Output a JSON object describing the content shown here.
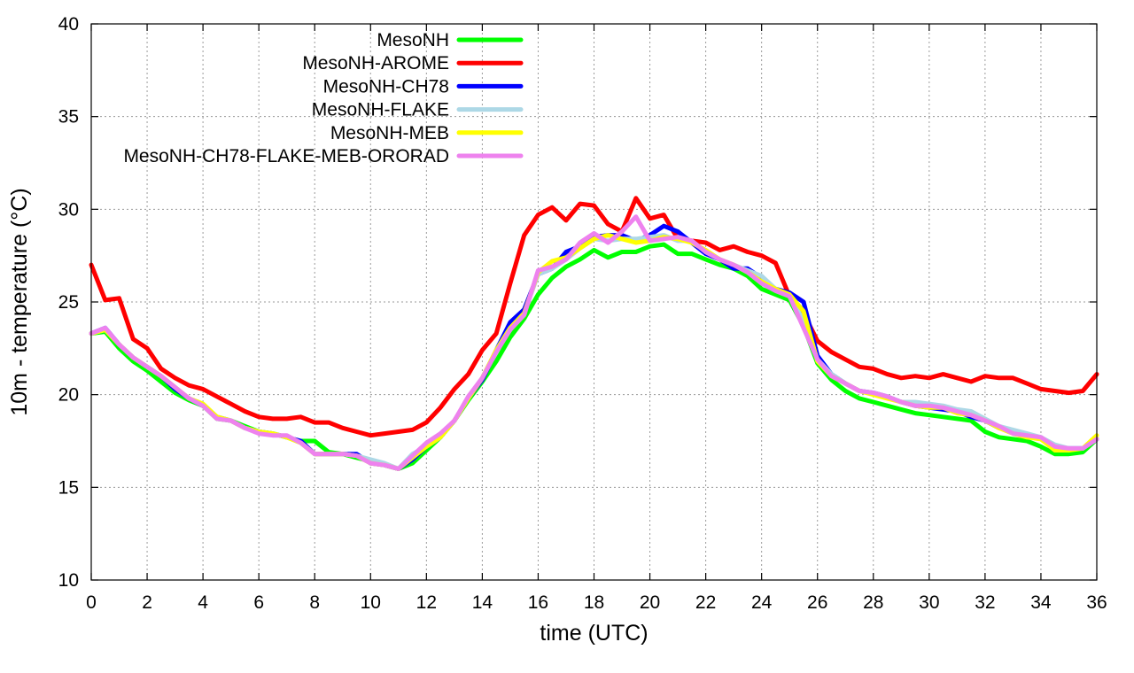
{
  "chart_data": {
    "type": "line",
    "title": "",
    "xlabel": "time (UTC)",
    "ylabel": "10m - temperature (°C)",
    "xlim": [
      0,
      36
    ],
    "ylim": [
      10,
      40
    ],
    "xticks": [
      0,
      2,
      4,
      6,
      8,
      10,
      12,
      14,
      16,
      18,
      20,
      22,
      24,
      26,
      28,
      30,
      32,
      34,
      36
    ],
    "yticks": [
      10,
      15,
      20,
      25,
      30,
      35,
      40
    ],
    "grid": true,
    "legend_position": "top-left",
    "x": [
      0,
      0.5,
      1,
      1.5,
      2,
      2.5,
      3,
      3.5,
      4,
      4.5,
      5,
      5.5,
      6,
      6.5,
      7,
      7.5,
      8,
      8.5,
      9,
      9.5,
      10,
      10.5,
      11,
      11.5,
      12,
      12.5,
      13,
      13.5,
      14,
      14.5,
      15,
      15.5,
      16,
      16.5,
      17,
      17.5,
      18,
      18.5,
      19,
      19.5,
      20,
      20.5,
      21,
      21.5,
      22,
      22.5,
      23,
      23.5,
      24,
      24.5,
      25,
      25.5,
      26,
      26.5,
      27,
      27.5,
      28,
      28.5,
      29,
      29.5,
      30,
      30.5,
      31,
      31.5,
      32,
      32.5,
      33,
      33.5,
      34,
      34.5,
      35,
      35.5,
      36
    ],
    "series": [
      {
        "name": "MesoNH",
        "color": "#00ff00",
        "values": [
          23.3,
          23.4,
          22.5,
          21.8,
          21.3,
          20.7,
          20.1,
          19.7,
          19.4,
          18.7,
          18.6,
          18.3,
          18.0,
          17.9,
          17.7,
          17.5,
          17.5,
          16.9,
          16.8,
          16.6,
          16.4,
          16.2,
          16.0,
          16.3,
          17.0,
          17.7,
          18.6,
          19.7,
          20.7,
          21.8,
          23.1,
          24.1,
          25.4,
          26.3,
          26.9,
          27.3,
          27.8,
          27.4,
          27.7,
          27.7,
          28.0,
          28.1,
          27.6,
          27.6,
          27.3,
          27.0,
          26.8,
          26.4,
          25.7,
          25.4,
          25.1,
          23.7,
          21.7,
          20.8,
          20.2,
          19.8,
          19.6,
          19.4,
          19.2,
          19.0,
          18.9,
          18.8,
          18.7,
          18.6,
          18.0,
          17.7,
          17.6,
          17.5,
          17.2,
          16.8,
          16.8,
          16.9,
          17.6
        ]
      },
      {
        "name": "MesoNH-AROME",
        "color": "#ff0000",
        "values": [
          27.0,
          25.1,
          25.2,
          23.0,
          22.5,
          21.4,
          20.9,
          20.5,
          20.3,
          19.9,
          19.5,
          19.1,
          18.8,
          18.7,
          18.7,
          18.8,
          18.5,
          18.5,
          18.2,
          18.0,
          17.8,
          17.9,
          18.0,
          18.1,
          18.5,
          19.3,
          20.3,
          21.1,
          22.4,
          23.3,
          26.0,
          28.6,
          29.7,
          30.1,
          29.4,
          30.3,
          30.2,
          29.2,
          28.8,
          30.6,
          29.5,
          29.7,
          28.4,
          28.3,
          28.2,
          27.8,
          28.0,
          27.7,
          27.5,
          27.1,
          25.3,
          24.4,
          22.9,
          22.3,
          21.9,
          21.5,
          21.4,
          21.1,
          20.9,
          21.0,
          20.9,
          21.1,
          20.9,
          20.7,
          21.0,
          20.9,
          20.9,
          20.6,
          20.3,
          20.2,
          20.1,
          20.2,
          21.1
        ]
      },
      {
        "name": "MesoNH-CH78",
        "color": "#0000ff",
        "values": [
          23.3,
          23.6,
          22.7,
          22.0,
          21.5,
          21.0,
          20.3,
          19.8,
          19.4,
          18.8,
          18.6,
          18.2,
          18.0,
          17.9,
          17.7,
          17.5,
          16.8,
          16.8,
          16.8,
          16.8,
          16.3,
          16.2,
          16.0,
          16.5,
          17.2,
          17.7,
          18.6,
          19.8,
          20.8,
          22.4,
          23.9,
          24.6,
          26.5,
          26.8,
          27.7,
          28.0,
          28.5,
          28.6,
          28.6,
          28.3,
          28.6,
          29.1,
          28.8,
          28.2,
          27.6,
          27.3,
          26.8,
          26.8,
          26.3,
          25.7,
          25.5,
          25.0,
          22.1,
          21.1,
          20.6,
          20.2,
          20.1,
          19.9,
          19.6,
          19.4,
          19.3,
          19.2,
          19.1,
          18.8,
          18.6,
          18.2,
          18.0,
          17.8,
          17.7,
          17.2,
          17.1,
          17.1,
          17.6
        ]
      },
      {
        "name": "MesoNH-FLAKE",
        "color": "#add8e6",
        "values": [
          23.3,
          23.5,
          22.7,
          22.0,
          21.5,
          21.0,
          20.4,
          19.8,
          19.5,
          18.8,
          18.6,
          18.2,
          18.0,
          17.9,
          17.7,
          17.4,
          16.8,
          16.8,
          16.8,
          16.7,
          16.5,
          16.3,
          16.0,
          16.8,
          17.2,
          17.7,
          18.6,
          19.8,
          20.9,
          22.4,
          23.6,
          24.4,
          26.5,
          26.8,
          27.3,
          27.9,
          28.4,
          28.3,
          28.4,
          28.4,
          28.5,
          28.6,
          28.3,
          28.3,
          27.7,
          27.3,
          27.0,
          26.7,
          26.4,
          25.7,
          25.3,
          24.0,
          21.9,
          21.1,
          20.6,
          20.2,
          20.1,
          19.9,
          19.6,
          19.6,
          19.5,
          19.4,
          19.2,
          19.1,
          18.7,
          18.3,
          18.1,
          17.9,
          17.7,
          17.3,
          17.1,
          17.1,
          17.6
        ]
      },
      {
        "name": "MesoNH-MEB",
        "color": "#ffff00",
        "values": [
          23.3,
          23.5,
          22.7,
          22.0,
          21.5,
          21.0,
          20.4,
          19.8,
          19.5,
          18.8,
          18.6,
          18.2,
          18.0,
          17.9,
          17.7,
          17.4,
          16.8,
          16.8,
          16.8,
          16.7,
          16.3,
          16.2,
          16.0,
          16.6,
          17.2,
          17.7,
          18.6,
          19.8,
          20.9,
          22.4,
          23.6,
          24.4,
          26.6,
          27.2,
          27.4,
          27.9,
          28.4,
          28.6,
          28.4,
          28.2,
          28.3,
          28.5,
          28.4,
          28.2,
          27.8,
          27.3,
          27.0,
          26.6,
          26.1,
          25.7,
          25.4,
          24.5,
          21.8,
          21.0,
          20.6,
          20.2,
          20.0,
          19.8,
          19.6,
          19.4,
          19.3,
          19.3,
          19.0,
          18.9,
          18.6,
          18.2,
          17.9,
          17.7,
          17.6,
          17.0,
          17.0,
          17.1,
          17.8
        ]
      },
      {
        "name": "MesoNH-CH78-FLAKE-MEB-ORORAD",
        "color": "#ee82ee",
        "values": [
          23.3,
          23.6,
          22.7,
          22.0,
          21.5,
          21.0,
          20.4,
          19.8,
          19.4,
          18.7,
          18.6,
          18.2,
          17.9,
          17.8,
          17.8,
          17.4,
          16.8,
          16.8,
          16.8,
          16.7,
          16.3,
          16.2,
          16.0,
          16.7,
          17.4,
          17.9,
          18.6,
          19.9,
          20.9,
          22.3,
          23.5,
          24.3,
          26.7,
          26.9,
          27.3,
          28.2,
          28.7,
          28.2,
          28.8,
          29.6,
          28.3,
          28.4,
          28.5,
          28.3,
          27.7,
          27.3,
          27.0,
          26.6,
          26.0,
          25.6,
          25.3,
          23.6,
          21.9,
          21.0,
          20.6,
          20.2,
          20.1,
          19.9,
          19.6,
          19.4,
          19.4,
          19.3,
          19.1,
          18.9,
          18.6,
          18.3,
          17.9,
          17.8,
          17.7,
          17.2,
          17.1,
          17.1,
          17.6
        ]
      }
    ]
  }
}
